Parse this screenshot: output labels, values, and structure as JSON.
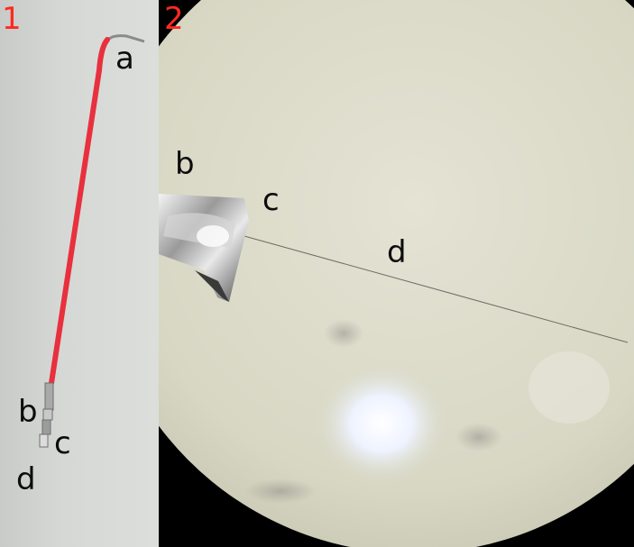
{
  "panel_1": {
    "number": "1",
    "labels": {
      "a": "a",
      "b": "b",
      "c": "c",
      "d": "d"
    }
  },
  "panel_2": {
    "number": "2",
    "labels": {
      "b": "b",
      "c": "c",
      "d": "d"
    }
  },
  "colors": {
    "panel_number": "#ff2a1f",
    "wire_insulation": "#e8303e",
    "label_text": "#0c0c0c"
  }
}
